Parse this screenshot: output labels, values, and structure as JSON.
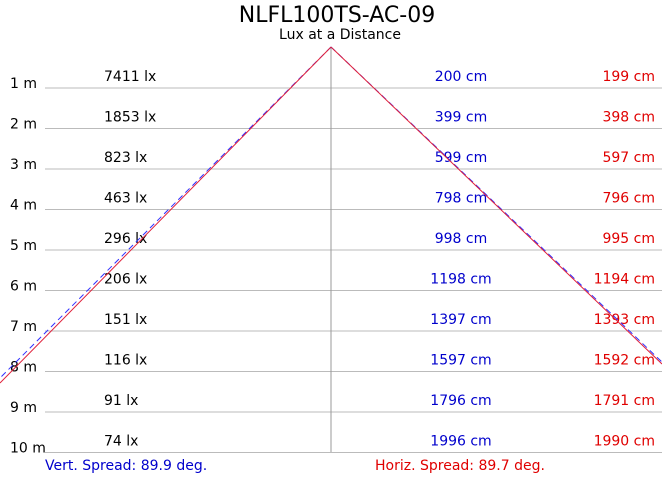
{
  "header": {
    "title": "NLFL100TS-AC-09",
    "subtitle": "Lux at a Distance"
  },
  "rows": [
    {
      "distance": "1 m",
      "lux": "7411 lx",
      "vertical": "200 cm",
      "horizontal": "199 cm"
    },
    {
      "distance": "2 m",
      "lux": "1853 lx",
      "vertical": "399 cm",
      "horizontal": "398 cm"
    },
    {
      "distance": "3 m",
      "lux": "823 lx",
      "vertical": "599 cm",
      "horizontal": "597 cm"
    },
    {
      "distance": "4 m",
      "lux": "463 lx",
      "vertical": "798 cm",
      "horizontal": "796 cm"
    },
    {
      "distance": "5 m",
      "lux": "296 lx",
      "vertical": "998 cm",
      "horizontal": "995 cm"
    },
    {
      "distance": "6 m",
      "lux": "206 lx",
      "vertical": "1198 cm",
      "horizontal": "1194 cm"
    },
    {
      "distance": "7 m",
      "lux": "151 lx",
      "vertical": "1397 cm",
      "horizontal": "1393 cm"
    },
    {
      "distance": "8 m",
      "lux": "116 lx",
      "vertical": "1597 cm",
      "horizontal": "1592 cm"
    },
    {
      "distance": "9 m",
      "lux": "91 lx",
      "vertical": "1796 cm",
      "horizontal": "1791 cm"
    },
    {
      "distance": "10 m",
      "lux": "74 lx",
      "vertical": "1996 cm",
      "horizontal": "1990 cm"
    }
  ],
  "footer": {
    "vertical_spread": "Vert. Spread: 89.9 deg.",
    "horizontal_spread": "Horiz. Spread: 89.7 deg."
  }
}
